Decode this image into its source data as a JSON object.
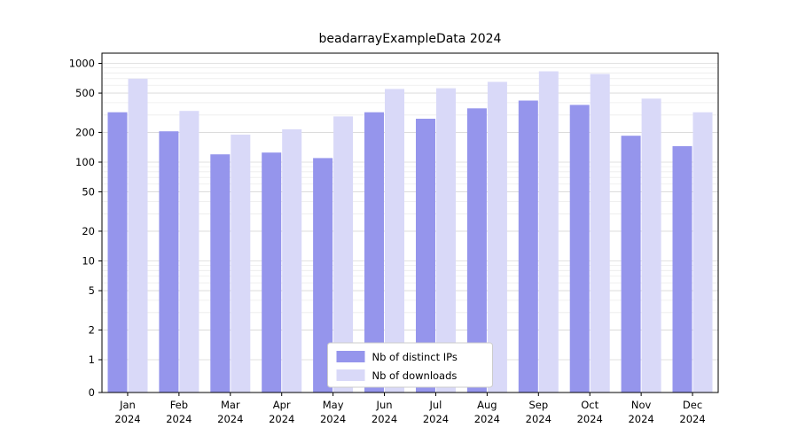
{
  "chart_data": {
    "type": "bar",
    "title": "beadarrayExampleData 2024",
    "categories": [
      "Jan",
      "Feb",
      "Mar",
      "Apr",
      "May",
      "Jun",
      "Jul",
      "Aug",
      "Sep",
      "Oct",
      "Nov",
      "Dec"
    ],
    "year_label": "2024",
    "series": [
      {
        "name": "Nb of distinct IPs",
        "color": "#9595ec",
        "values": [
          320,
          205,
          120,
          125,
          110,
          320,
          275,
          350,
          420,
          380,
          185,
          145
        ]
      },
      {
        "name": "Nb of downloads",
        "color": "#d9d9f8",
        "values": [
          700,
          330,
          190,
          215,
          290,
          550,
          560,
          650,
          830,
          780,
          440,
          320
        ]
      }
    ],
    "y_ticks": [
      0,
      1,
      2,
      5,
      10,
      20,
      50,
      100,
      200,
      500,
      1000
    ],
    "y_scale": "log",
    "ylim": [
      0,
      1000
    ],
    "grid": true,
    "grid_major_color": "#d9d9d9",
    "grid_minor_color": "#ececec",
    "axis_color": "#000000",
    "tick_label_color": "#000000",
    "legend_position": "bottom-center-inside",
    "legend_border_color": "#cccccc",
    "legend_background": "#ffffff"
  }
}
